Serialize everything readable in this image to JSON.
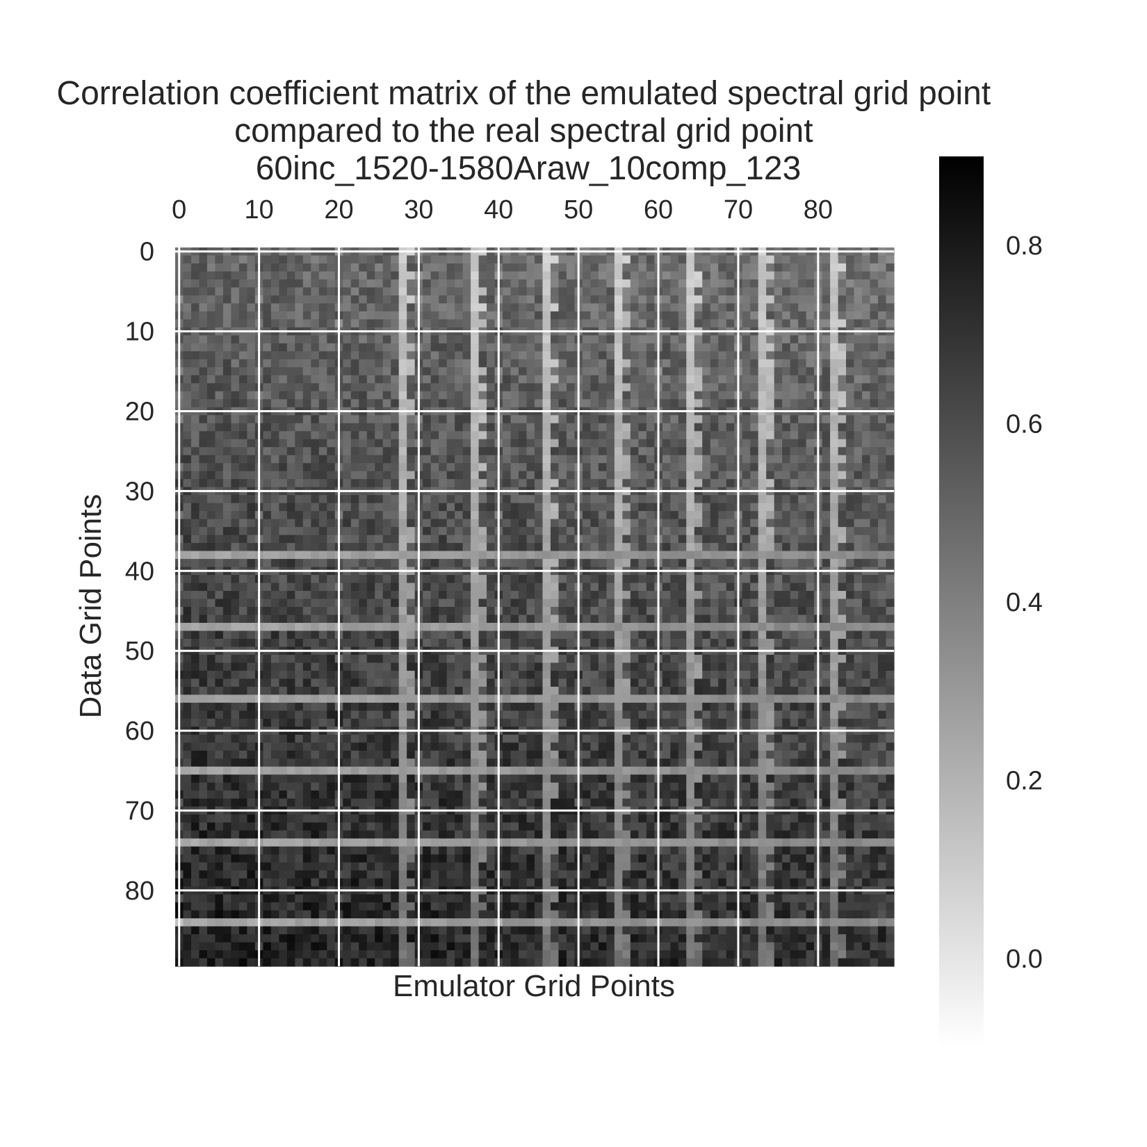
{
  "chart_data": {
    "type": "heatmap",
    "title": "Correlation coefficient matrix of the emulated spectral grid point\ncompared to the real spectral grid point\n60inc_1520-1580Araw_10comp_123",
    "xlabel": "Emulator Grid Points",
    "ylabel": "Data Grid Points",
    "n_rows": 90,
    "n_cols": 90,
    "x_ticks": [
      0,
      10,
      20,
      30,
      40,
      50,
      60,
      70,
      80
    ],
    "y_ticks": [
      0,
      10,
      20,
      30,
      40,
      50,
      60,
      70,
      80
    ],
    "x_tick_position": "top",
    "colormap": "greys",
    "colorbar": {
      "vmin": -0.1,
      "vmax": 0.9,
      "ticks": [
        0.0,
        0.2,
        0.4,
        0.6,
        0.8
      ],
      "tick_labels": [
        "0.0",
        "0.2",
        "0.4",
        "0.6",
        "0.8"
      ]
    },
    "grid": true,
    "grid_color": "#ffffff",
    "light_columns": [
      28,
      37,
      46,
      55,
      64,
      73,
      82
    ],
    "light_rows": [
      38,
      47,
      56,
      65,
      74,
      84
    ]
  },
  "colors": {
    "text": "#262626",
    "background": "#ffffff",
    "grid": "#ffffff"
  }
}
